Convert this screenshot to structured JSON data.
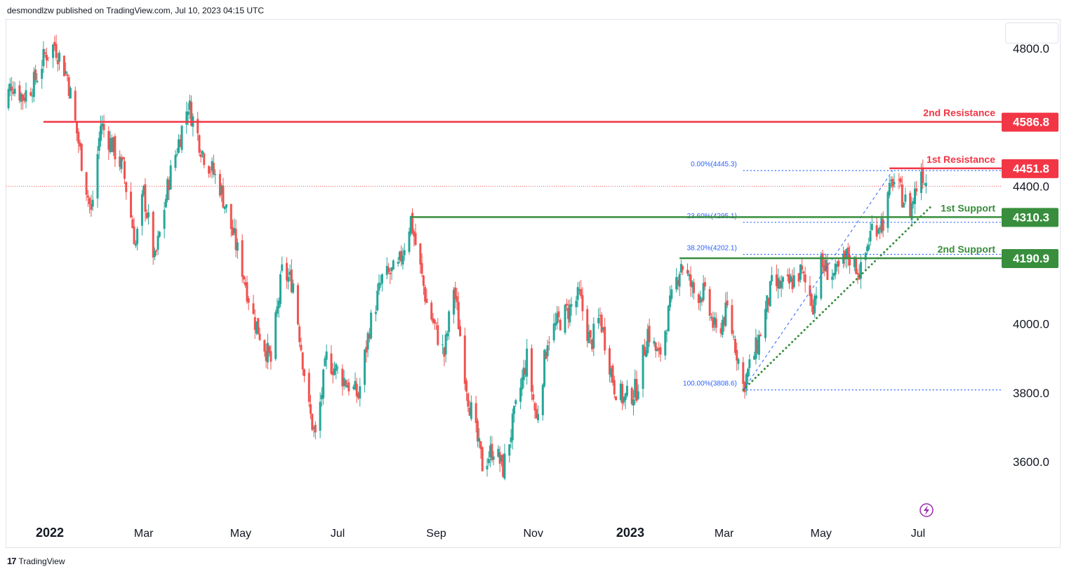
{
  "header": {
    "published": "desmondlzw published on TradingView.com, Jul 10, 2023 04:15 UTC"
  },
  "footer": {
    "brand": "TradingView",
    "logo": "17"
  },
  "colors": {
    "up": "#26a69a",
    "down": "#ef5350",
    "resistance": "#f23645",
    "support": "#388e3c",
    "fib": "#2962ff",
    "fib_text": "#2962ff",
    "price_line": "#ef5350"
  },
  "chart_data": {
    "type": "candlestick",
    "ylim": [
      3460,
      4890
    ],
    "y_ticks": [
      {
        "value": 4800,
        "label": "4800.0"
      },
      {
        "value": 4400,
        "label": "4400.0"
      },
      {
        "value": 4000,
        "label": "4000.0"
      },
      {
        "value": 3800,
        "label": "3800.0"
      },
      {
        "value": 3600,
        "label": "3600.0"
      }
    ],
    "x_ticks": [
      {
        "date": "2022-01-01",
        "label": "2022",
        "bold": true
      },
      {
        "date": "2022-03-01",
        "label": "Mar",
        "bold": false
      },
      {
        "date": "2022-05-01",
        "label": "May",
        "bold": false
      },
      {
        "date": "2022-07-01",
        "label": "Jul",
        "bold": false
      },
      {
        "date": "2022-09-01",
        "label": "Sep",
        "bold": false
      },
      {
        "date": "2022-11-01",
        "label": "Nov",
        "bold": false
      },
      {
        "date": "2023-01-01",
        "label": "2023",
        "bold": true
      },
      {
        "date": "2023-03-01",
        "label": "Mar",
        "bold": false
      },
      {
        "date": "2023-05-01",
        "label": "May",
        "bold": false
      },
      {
        "date": "2023-07-01",
        "label": "Jul",
        "bold": false
      }
    ],
    "price_path": [
      [
        "2021-12-01",
        4600
      ],
      [
        "2021-12-08",
        4700
      ],
      [
        "2021-12-15",
        4660
      ],
      [
        "2021-12-22",
        4700
      ],
      [
        "2021-12-29",
        4780
      ],
      [
        "2022-01-04",
        4810
      ],
      [
        "2022-01-12",
        4720
      ],
      [
        "2022-01-20",
        4500
      ],
      [
        "2022-01-27",
        4320
      ],
      [
        "2022-02-02",
        4580
      ],
      [
        "2022-02-09",
        4520
      ],
      [
        "2022-02-16",
        4450
      ],
      [
        "2022-02-24",
        4230
      ],
      [
        "2022-03-01",
        4380
      ],
      [
        "2022-03-08",
        4180
      ],
      [
        "2022-03-17",
        4420
      ],
      [
        "2022-03-29",
        4640
      ],
      [
        "2022-04-07",
        4500
      ],
      [
        "2022-04-18",
        4400
      ],
      [
        "2022-04-25",
        4280
      ],
      [
        "2022-05-02",
        4160
      ],
      [
        "2022-05-09",
        4020
      ],
      [
        "2022-05-20",
        3890
      ],
      [
        "2022-05-27",
        4150
      ],
      [
        "2022-06-03",
        4120
      ],
      [
        "2022-06-13",
        3750
      ],
      [
        "2022-06-17",
        3670
      ],
      [
        "2022-06-24",
        3900
      ],
      [
        "2022-07-05",
        3840
      ],
      [
        "2022-07-14",
        3790
      ],
      [
        "2022-07-21",
        3990
      ],
      [
        "2022-07-29",
        4130
      ],
      [
        "2022-08-08",
        4160
      ],
      [
        "2022-08-16",
        4305
      ],
      [
        "2022-08-26",
        4060
      ],
      [
        "2022-09-06",
        3910
      ],
      [
        "2022-09-12",
        4110
      ],
      [
        "2022-09-21",
        3790
      ],
      [
        "2022-09-30",
        3590
      ],
      [
        "2022-10-07",
        3640
      ],
      [
        "2022-10-13",
        3580
      ],
      [
        "2022-10-21",
        3750
      ],
      [
        "2022-10-28",
        3900
      ],
      [
        "2022-11-03",
        3720
      ],
      [
        "2022-11-10",
        3960
      ],
      [
        "2022-11-16",
        4000
      ],
      [
        "2022-11-30",
        4080
      ],
      [
        "2022-12-07",
        3940
      ],
      [
        "2022-12-13",
        4020
      ],
      [
        "2022-12-22",
        3820
      ],
      [
        "2022-12-28",
        3780
      ],
      [
        "2023-01-05",
        3810
      ],
      [
        "2023-01-12",
        3980
      ],
      [
        "2023-01-19",
        3900
      ],
      [
        "2023-01-27",
        4070
      ],
      [
        "2023-02-02",
        4180
      ],
      [
        "2023-02-10",
        4090
      ],
      [
        "2023-02-16",
        4090
      ],
      [
        "2023-02-24",
        3970
      ],
      [
        "2023-03-03",
        4040
      ],
      [
        "2023-03-09",
        3920
      ],
      [
        "2023-03-13",
        3820
      ],
      [
        "2023-03-22",
        3940
      ],
      [
        "2023-03-31",
        4110
      ],
      [
        "2023-04-10",
        4110
      ],
      [
        "2023-04-18",
        4150
      ],
      [
        "2023-04-26",
        4060
      ],
      [
        "2023-05-01",
        4170
      ],
      [
        "2023-05-10",
        4140
      ],
      [
        "2023-05-18",
        4200
      ],
      [
        "2023-05-26",
        4150
      ],
      [
        "2023-06-02",
        4280
      ],
      [
        "2023-06-09",
        4300
      ],
      [
        "2023-06-15",
        4420
      ],
      [
        "2023-06-26",
        4330
      ],
      [
        "2023-07-03",
        4450
      ],
      [
        "2023-07-07",
        4400
      ]
    ],
    "last_price": 4400,
    "levels": [
      {
        "name": "2nd Resistance",
        "value": 4586.8,
        "label": "4586.8",
        "kind": "resistance",
        "start": "2021-12-28"
      },
      {
        "name": "1st Resistance",
        "value": 4451.8,
        "label": "4451.8",
        "kind": "resistance",
        "start": "2023-06-13"
      },
      {
        "name": "1st Support",
        "value": 4310.3,
        "label": "4310.3",
        "kind": "support",
        "start": "2022-08-16"
      },
      {
        "name": "2nd Support",
        "value": 4190.9,
        "label": "4190.9",
        "kind": "support",
        "start": "2023-02-01"
      }
    ],
    "fib_levels": [
      {
        "label": "0.00%(4445.3)",
        "value": 4445.3
      },
      {
        "label": "23.60%(4295.1)",
        "value": 4295.1
      },
      {
        "label": "38.20%(4202.1)",
        "value": 4202.1
      },
      {
        "label": "100.00%(3808.6)",
        "value": 3808.6
      }
    ],
    "fib_start": "2023-03-13",
    "fib_end": "2023-06-15",
    "trendline": {
      "start": [
        "2023-03-13",
        3808.6
      ],
      "end": [
        "2023-07-10",
        4345
      ]
    }
  }
}
